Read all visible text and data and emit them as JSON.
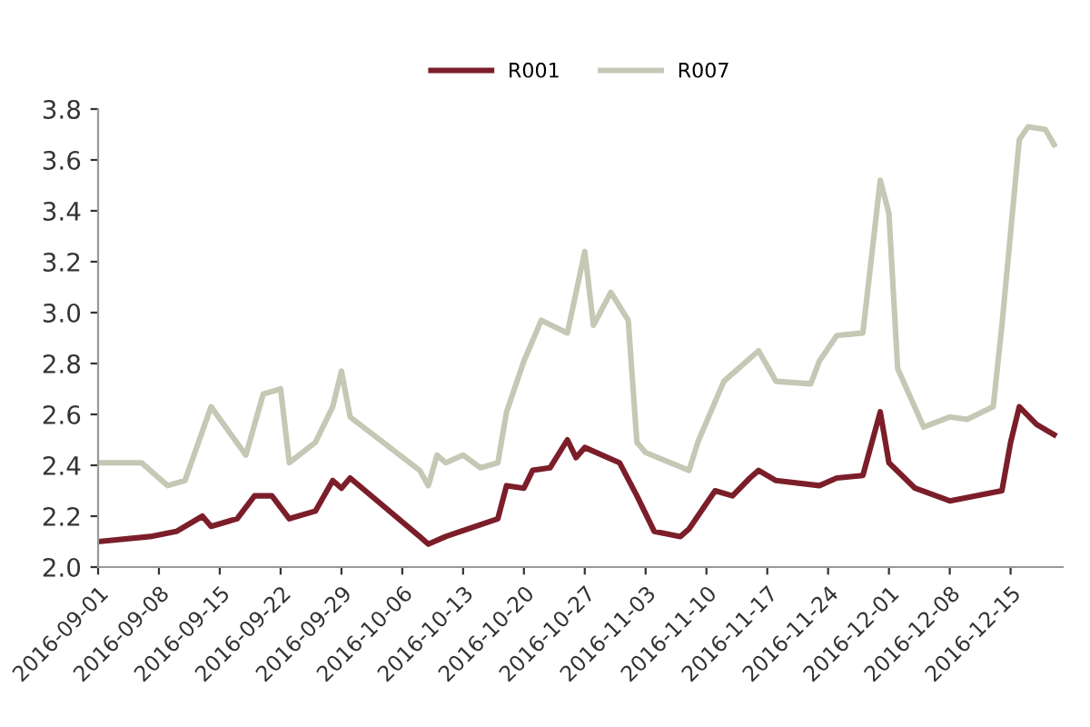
{
  "chart_data": {
    "type": "line",
    "series": [
      {
        "name": "R001",
        "color": "#7b1e2a",
        "x": [
          "2016-09-01",
          "2016-09-07",
          "2016-09-10",
          "2016-09-13",
          "2016-09-14",
          "2016-09-17",
          "2016-09-19",
          "2016-09-21",
          "2016-09-23",
          "2016-09-26",
          "2016-09-28",
          "2016-09-29",
          "2016-09-30",
          "2016-10-08",
          "2016-10-09",
          "2016-10-11",
          "2016-10-17",
          "2016-10-18",
          "2016-10-20",
          "2016-10-21",
          "2016-10-23",
          "2016-10-25",
          "2016-10-26",
          "2016-10-27",
          "2016-10-31",
          "2016-11-02",
          "2016-11-04",
          "2016-11-07",
          "2016-11-08",
          "2016-11-11",
          "2016-11-13",
          "2016-11-15",
          "2016-11-16",
          "2016-11-18",
          "2016-11-23",
          "2016-11-25",
          "2016-11-28",
          "2016-11-30",
          "2016-12-01",
          "2016-12-04",
          "2016-12-08",
          "2016-12-14",
          "2016-12-15",
          "2016-12-16",
          "2016-12-18",
          "2016-12-20"
        ],
        "values": [
          2.1,
          2.12,
          2.14,
          2.2,
          2.16,
          2.19,
          2.28,
          2.28,
          2.19,
          2.22,
          2.34,
          2.31,
          2.35,
          2.12,
          2.09,
          2.12,
          2.19,
          2.32,
          2.31,
          2.38,
          2.39,
          2.5,
          2.43,
          2.47,
          2.41,
          2.28,
          2.14,
          2.12,
          2.15,
          2.3,
          2.28,
          2.35,
          2.38,
          2.34,
          2.32,
          2.35,
          2.36,
          2.61,
          2.41,
          2.31,
          2.26,
          2.3,
          2.49,
          2.63,
          2.56,
          2.52
        ]
      },
      {
        "name": "R007",
        "color": "#c4c8b4",
        "x": [
          "2016-09-01",
          "2016-09-06",
          "2016-09-09",
          "2016-09-11",
          "2016-09-14",
          "2016-09-18",
          "2016-09-20",
          "2016-09-22",
          "2016-09-23",
          "2016-09-26",
          "2016-09-28",
          "2016-09-29",
          "2016-09-30",
          "2016-10-08",
          "2016-10-09",
          "2016-10-10",
          "2016-10-11",
          "2016-10-13",
          "2016-10-15",
          "2016-10-17",
          "2016-10-18",
          "2016-10-20",
          "2016-10-22",
          "2016-10-25",
          "2016-10-27",
          "2016-10-28",
          "2016-10-30",
          "2016-11-01",
          "2016-11-02",
          "2016-11-03",
          "2016-11-08",
          "2016-11-09",
          "2016-11-12",
          "2016-11-16",
          "2016-11-18",
          "2016-11-22",
          "2016-11-23",
          "2016-11-25",
          "2016-11-28",
          "2016-11-30",
          "2016-12-01",
          "2016-12-02",
          "2016-12-05",
          "2016-12-08",
          "2016-12-10",
          "2016-12-13",
          "2016-12-14",
          "2016-12-16",
          "2016-12-17",
          "2016-12-19",
          "2016-12-20"
        ],
        "values": [
          2.41,
          2.41,
          2.32,
          2.34,
          2.63,
          2.44,
          2.68,
          2.7,
          2.41,
          2.49,
          2.63,
          2.77,
          2.59,
          2.38,
          2.32,
          2.44,
          2.41,
          2.44,
          2.39,
          2.41,
          2.61,
          2.81,
          2.97,
          2.92,
          3.24,
          2.95,
          3.08,
          2.97,
          2.49,
          2.45,
          2.38,
          2.49,
          2.73,
          2.85,
          2.73,
          2.72,
          2.81,
          2.91,
          2.92,
          3.52,
          3.39,
          2.78,
          2.55,
          2.59,
          2.58,
          2.63,
          2.95,
          3.68,
          3.73,
          3.72,
          3.66
        ]
      }
    ],
    "xlim": [
      "2016-09-01",
      "2016-12-21"
    ],
    "xticks": [
      "2016-09-01",
      "2016-09-08",
      "2016-09-15",
      "2016-09-22",
      "2016-09-29",
      "2016-10-06",
      "2016-10-13",
      "2016-10-20",
      "2016-10-27",
      "2016-11-03",
      "2016-11-10",
      "2016-11-17",
      "2016-11-24",
      "2016-12-01",
      "2016-12-08",
      "2016-12-15"
    ],
    "ylim": [
      2.0,
      3.8
    ],
    "yticks": [
      {
        "value": 2.0,
        "label": "2.0"
      },
      2.2,
      2.4,
      2.6,
      2.8,
      {
        "value": 3.0,
        "label": "3.0"
      },
      3.2,
      3.4,
      3.6,
      3.8
    ],
    "grid": false,
    "legend": "top",
    "line_style": "solid"
  }
}
